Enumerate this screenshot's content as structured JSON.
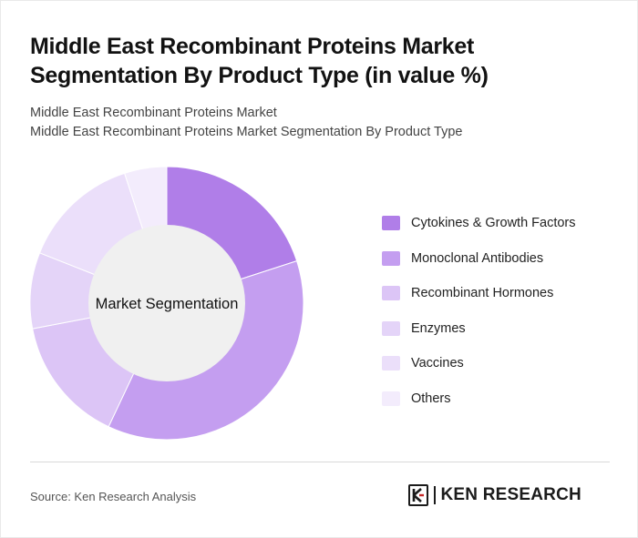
{
  "header": {
    "title": "Middle East Recombinant Proteins Market Segmentation By Product Type (in value %)",
    "subtitle_line1": "Middle East Recombinant Proteins Market",
    "subtitle_line2": "Middle East Recombinant Proteins Market Segmentation By Product Type"
  },
  "chart_data": {
    "type": "pie",
    "variant": "donut",
    "center_label": "Market Segmentation",
    "categories": [
      "Cytokines & Growth Factors",
      "Monoclonal Antibodies",
      "Recombinant Hormones",
      "Enzymes",
      "Vaccines",
      "Others"
    ],
    "values": [
      20,
      37,
      15,
      9,
      14,
      5
    ],
    "colors": [
      "#b07ee8",
      "#c49ef0",
      "#dcc5f6",
      "#e4d4f8",
      "#ebdffa",
      "#f3ecfc"
    ],
    "legend_position": "right"
  },
  "footer": {
    "source": "Source: Ken Research Analysis",
    "logo_text": "KEN RESEARCH"
  }
}
